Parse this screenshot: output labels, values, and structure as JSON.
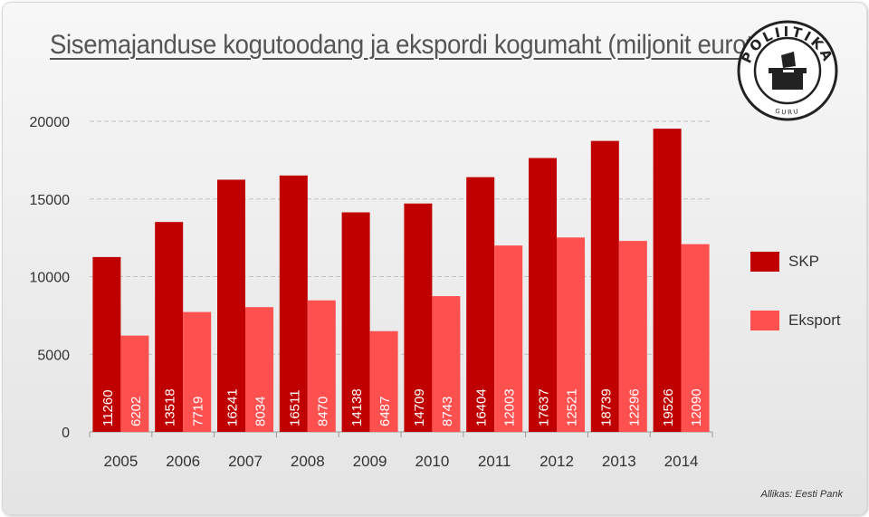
{
  "title": "Sisemajanduse kogutoodang ja ekspordi kogumaht (miljonit eurot)",
  "source": "Allikas: Eesti Pank",
  "logo": {
    "name": "POLIITIKA",
    "sub": "GURU"
  },
  "colors": {
    "skp": "#c00000",
    "eksport": "#ff5050",
    "grid": "#bfbfbf",
    "axis_text": "#333333"
  },
  "chart_data": {
    "type": "bar",
    "title": "Sisemajanduse kogutoodang ja ekspordi kogumaht (miljonit eurot)",
    "categories": [
      "2005",
      "2006",
      "2007",
      "2008",
      "2009",
      "2010",
      "2011",
      "2012",
      "2013",
      "2014"
    ],
    "series": [
      {
        "name": "SKP",
        "values": [
          11260,
          13518,
          16241,
          16511,
          14138,
          14709,
          16404,
          17637,
          18739,
          19526
        ]
      },
      {
        "name": "Eksport",
        "values": [
          6202,
          7719,
          8034,
          8470,
          6487,
          8743,
          12003,
          12521,
          12296,
          12090
        ]
      }
    ],
    "ylim": [
      0,
      20000
    ],
    "yticks": [
      "0",
      "5000",
      "10000",
      "15000",
      "20000"
    ],
    "grid": true,
    "legend_position": "right"
  }
}
